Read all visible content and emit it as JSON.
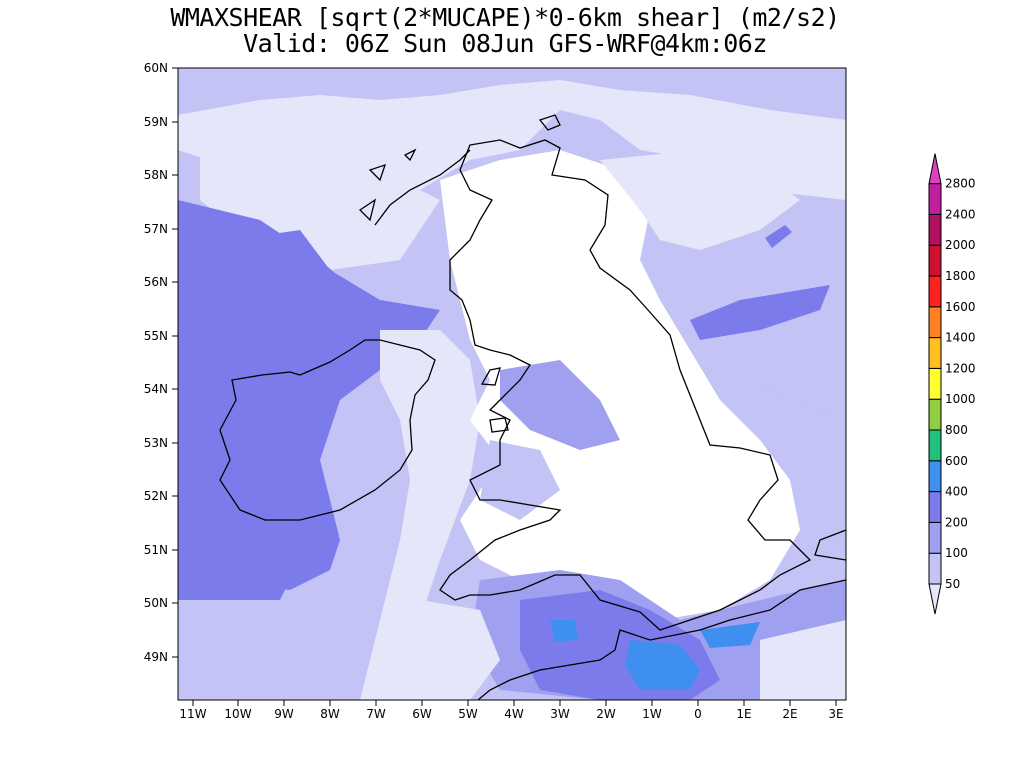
{
  "title": "WMAXSHEAR [sqrt(2*MUCAPE)*0-6km shear] (m2/s2)",
  "subtitle": "Valid: 06Z Sun 08Jun GFS-WRF@4km:06z",
  "lat_labels": [
    "60N",
    "59N",
    "58N",
    "57N",
    "56N",
    "55N",
    "54N",
    "53N",
    "52N",
    "51N",
    "50N",
    "49N"
  ],
  "lon_labels": [
    "11W",
    "10W",
    "9W",
    "8W",
    "7W",
    "6W",
    "5W",
    "4W",
    "3W",
    "2W",
    "1W",
    "0",
    "1E",
    "2E",
    "3E"
  ],
  "colorbar": {
    "labels": [
      "50",
      "100",
      "200",
      "400",
      "600",
      "800",
      "1000",
      "1200",
      "1400",
      "1600",
      "1800",
      "2000",
      "2400",
      "2800"
    ],
    "colors": [
      "#e6e6fa",
      "#c3c3f5",
      "#a0a0f0",
      "#7b7bec",
      "#3f8ff0",
      "#20c080",
      "#90d040",
      "#ffff30",
      "#ffc020",
      "#ff8020",
      "#ff2020",
      "#d01030",
      "#b01060",
      "#c020a0",
      "#e040c0"
    ]
  },
  "fill_colors": {
    "white": "#ffffff",
    "lv1": "#e6e6fa",
    "lv2": "#c3c3f5",
    "lv3": "#a0a0f0",
    "lv4": "#7b7bec",
    "lv5": "#3f8ff0"
  }
}
